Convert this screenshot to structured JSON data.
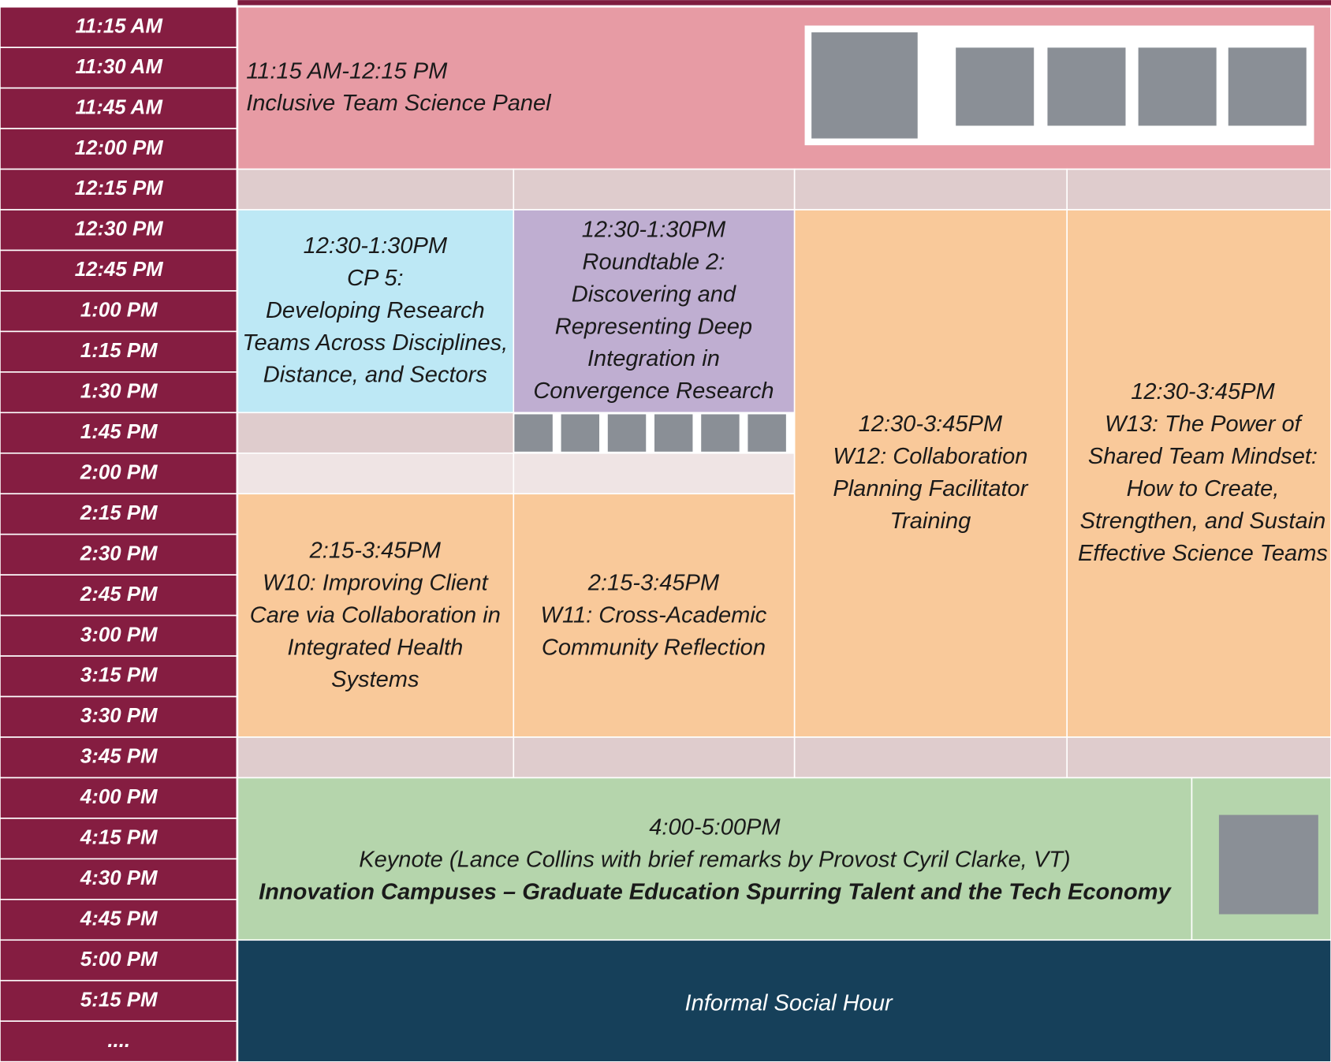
{
  "times": [
    "11:15 AM",
    "11:30 AM",
    "11:45 AM",
    "12:00 PM",
    "12:15 PM",
    "12:30 PM",
    "12:45 PM",
    "1:00 PM",
    "1:15 PM",
    "1:30 PM",
    "1:45 PM",
    "2:00 PM",
    "2:15 PM",
    "2:30 PM",
    "2:45 PM",
    "3:00 PM",
    "3:15 PM",
    "3:30 PM",
    "3:45 PM",
    "4:00 PM",
    "4:15 PM",
    "4:30 PM",
    "4:45 PM",
    "5:00 PM",
    "5:15 PM",
    "...."
  ],
  "sessions": {
    "panel": [
      "11:15 AM-12:15 PM",
      "Inclusive Team Science Panel"
    ],
    "cp5": [
      "12:30-1:30PM",
      "CP 5:",
      "Developing Research",
      "Teams Across Disciplines,",
      "Distance, and Sectors"
    ],
    "roundtable": [
      "12:30-1:30PM",
      "Roundtable 2:",
      "Discovering and",
      "Representing Deep",
      "Integration in",
      "Convergence Research"
    ],
    "w10": [
      "2:15-3:45PM",
      "W10: Improving Client",
      "Care via Collaboration in",
      "Integrated Health",
      "Systems"
    ],
    "w11": [
      "2:15-3:45PM",
      "W11: Cross-Academic",
      "Community Reflection"
    ],
    "w12": [
      "12:30-3:45PM",
      "W12: Collaboration",
      "Planning Facilitator",
      "Training"
    ],
    "w13": [
      "12:30-3:45PM",
      "W13: The Power of",
      "Shared Team Mindset:",
      "How to Create,",
      "Strengthen, and Sustain",
      "Effective Science Teams"
    ],
    "keynote": [
      "4:00-5:00PM",
      "Keynote (Lance Collins with brief remarks by Provost Cyril Clarke, VT)",
      "Innovation Campuses – Graduate Education Spurring Talent and the Tech Economy"
    ],
    "social": [
      "Informal Social Hour"
    ]
  }
}
